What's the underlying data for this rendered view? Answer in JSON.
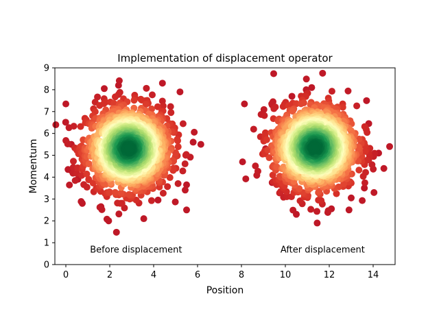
{
  "chart_data": {
    "type": "scatter",
    "title": "Implementation of displacement operator",
    "xlabel": "Position",
    "ylabel": "Momentum",
    "xlim": [
      -0.5,
      15.0
    ],
    "ylim": [
      0,
      9
    ],
    "xticks": [
      0,
      2,
      4,
      6,
      8,
      10,
      12,
      14
    ],
    "yticks": [
      0,
      1,
      2,
      3,
      4,
      5,
      6,
      7,
      8,
      9
    ],
    "grid": false,
    "colormap": "RdYlGn",
    "colors": {
      "low_density": "#a50026",
      "mid_density": "#ffffbf",
      "high_density": "#006837"
    },
    "annotations": [
      {
        "text": "Before displacement",
        "x": 3.2,
        "y": 0.55
      },
      {
        "text": "After displacement",
        "x": 11.7,
        "y": 0.55
      }
    ],
    "series": [
      {
        "center": [
          2.85,
          5.3
        ],
        "spread": 0.95,
        "count": 1500,
        "outliers": [
          [
            0.0,
            7.35
          ],
          [
            0.1,
            4.35
          ],
          [
            0.25,
            4.3
          ],
          [
            0.25,
            5.5
          ],
          [
            0.55,
            3.9
          ],
          [
            0.75,
            2.8
          ],
          [
            1.6,
            2.65
          ],
          [
            1.95,
            2.0
          ],
          [
            2.4,
            8.2
          ],
          [
            1.75,
            8.05
          ],
          [
            3.55,
            2.1
          ],
          [
            4.4,
            8.3
          ],
          [
            5.2,
            7.9
          ],
          [
            5.5,
            2.5
          ],
          [
            5.5,
            3.65
          ],
          [
            6.15,
            5.5
          ],
          [
            5.8,
            5.6
          ],
          [
            4.2,
            2.95
          ]
        ]
      },
      {
        "center": [
          11.35,
          5.35
        ],
        "spread": 0.95,
        "count": 1500,
        "outliers": [
          [
            8.05,
            4.7
          ],
          [
            9.1,
            5.3
          ],
          [
            9.4,
            3.75
          ],
          [
            10.5,
            2.3
          ],
          [
            11.45,
            1.9
          ],
          [
            12.1,
            2.55
          ],
          [
            12.9,
            2.5
          ],
          [
            13.6,
            3.5
          ],
          [
            14.25,
            5.1
          ],
          [
            14.75,
            5.4
          ],
          [
            13.8,
            6.45
          ],
          [
            13.7,
            7.5
          ],
          [
            11.2,
            8.1
          ],
          [
            10.95,
            8.0
          ],
          [
            10.3,
            7.7
          ],
          [
            9.4,
            7.3
          ],
          [
            13.0,
            3.05
          ]
        ]
      }
    ]
  }
}
